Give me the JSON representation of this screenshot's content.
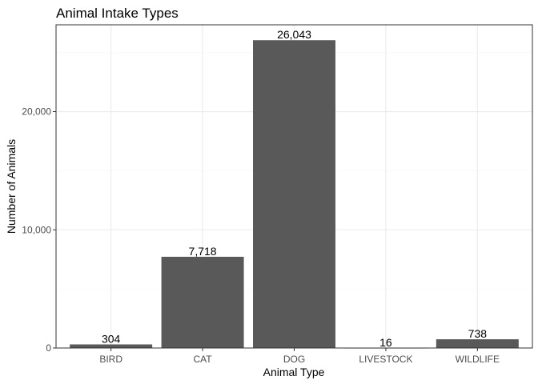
{
  "chart_data": {
    "type": "bar",
    "title": "Animal Intake Types",
    "xlabel": "Animal Type",
    "ylabel": "Number of Animals",
    "categories": [
      "BIRD",
      "CAT",
      "DOG",
      "LIVESTOCK",
      "WILDLIFE"
    ],
    "values": [
      304,
      7718,
      26043,
      16,
      738
    ],
    "data_labels": [
      "304",
      "7,718",
      "26,043",
      "16",
      "738"
    ],
    "yticks": [
      0,
      10000,
      20000
    ],
    "ytick_labels": [
      "0",
      "10,000",
      "20,000"
    ],
    "ylim": [
      0,
      27345
    ],
    "grid": true,
    "legend": "none",
    "colors": {
      "bar": "#595959",
      "grid_major": "#ebebeb",
      "grid_minor": "#f5f5f5",
      "panel_border": "#333333",
      "tick_text": "#4d4d4d"
    }
  }
}
